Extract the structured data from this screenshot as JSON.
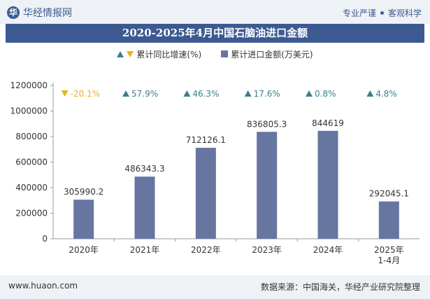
{
  "header": {
    "brand": "华经情报网",
    "tagline_left": "专业严谨",
    "tagline_right": "客观科学"
  },
  "footer": {
    "website": "www.huaon.com",
    "source": "数据来源：中国海关，华经产业研究院整理"
  },
  "colors": {
    "bar": "#6776a0",
    "up": "#3d7f8c",
    "down": "#e8b31a",
    "header_blue": "#3c5a91"
  },
  "chart_data": {
    "type": "bar",
    "title": "2020-2025年4月中国石脑油进口金额",
    "categories": [
      "2020年",
      "2021年",
      "2022年",
      "2023年",
      "2024年",
      "2025年\n1-4月"
    ],
    "series": [
      {
        "name": "累计进口金额(万美元)",
        "values": [
          305990.2,
          486343.3,
          712126.1,
          836805.3,
          844619,
          292045.1
        ],
        "labels": [
          "305990.2",
          "486343.3",
          "712126.1",
          "836805.3",
          "844619",
          "292045.1"
        ]
      },
      {
        "name": "累计同比增速(%)",
        "values": [
          -20.1,
          57.9,
          46.3,
          17.6,
          0.8,
          4.8
        ],
        "labels": [
          "-20.1%",
          "57.9%",
          "46.3%",
          "17.6%",
          "0.8%",
          "4.8%"
        ]
      }
    ],
    "y_ticks": [
      "0",
      "200000",
      "400000",
      "600000",
      "800000",
      "1000000",
      "1200000"
    ],
    "ylim": [
      0,
      1200000
    ],
    "grid": false,
    "legend_position": "top-center"
  }
}
